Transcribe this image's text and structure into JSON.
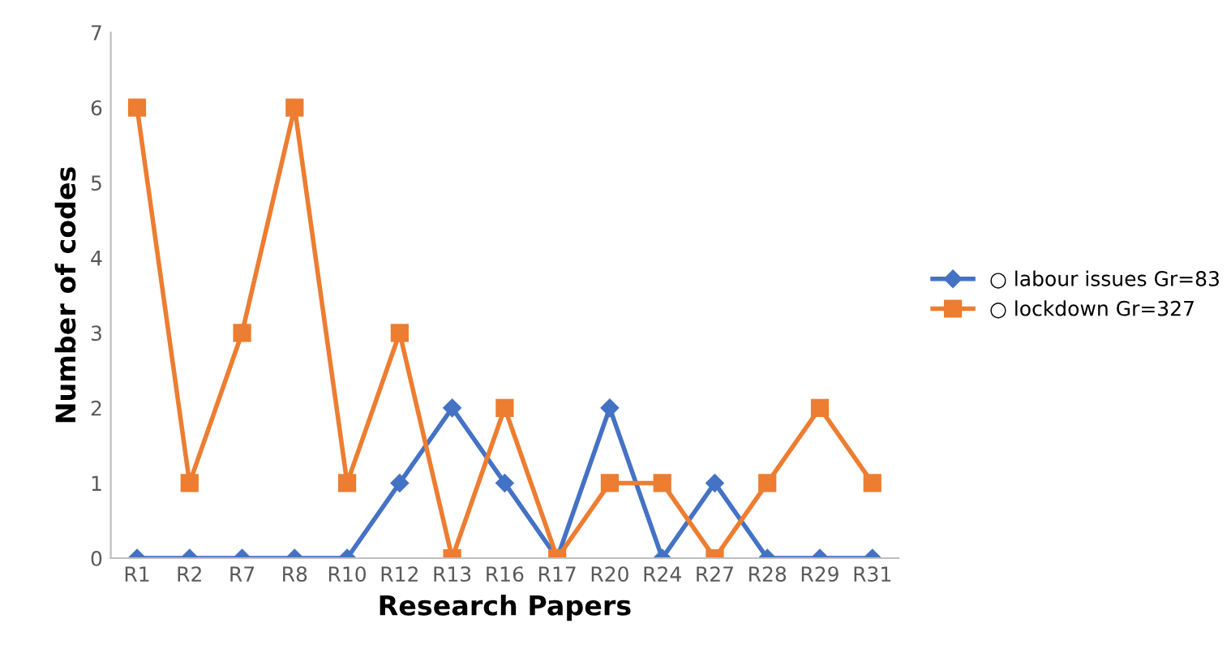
{
  "chart_data": {
    "type": "line",
    "xlabel": "Research Papers",
    "ylabel": "Number of codes",
    "categories": [
      "R1",
      "R2",
      "R7",
      "R8",
      "R10",
      "R12",
      "R13",
      "R16",
      "R17",
      "R20",
      "R24",
      "R27",
      "R28",
      "R29",
      "R31"
    ],
    "series": [
      {
        "name": "○ labour issues Gr=83",
        "color": "#4472c4",
        "marker": "diamond",
        "values": [
          0,
          0,
          0,
          0,
          0,
          1,
          2,
          1,
          0,
          2,
          0,
          1,
          0,
          0,
          0
        ]
      },
      {
        "name": "○ lockdown Gr=327",
        "color": "#ed7d31",
        "marker": "square",
        "values": [
          6,
          1,
          3,
          6,
          1,
          3,
          0,
          2,
          0,
          1,
          1,
          0,
          1,
          2,
          1
        ]
      }
    ],
    "ylim": [
      0,
      7
    ],
    "yticks": [
      0,
      1,
      2,
      3,
      4,
      5,
      6,
      7
    ],
    "grid": false,
    "legend": "right",
    "line_style": "solid"
  }
}
